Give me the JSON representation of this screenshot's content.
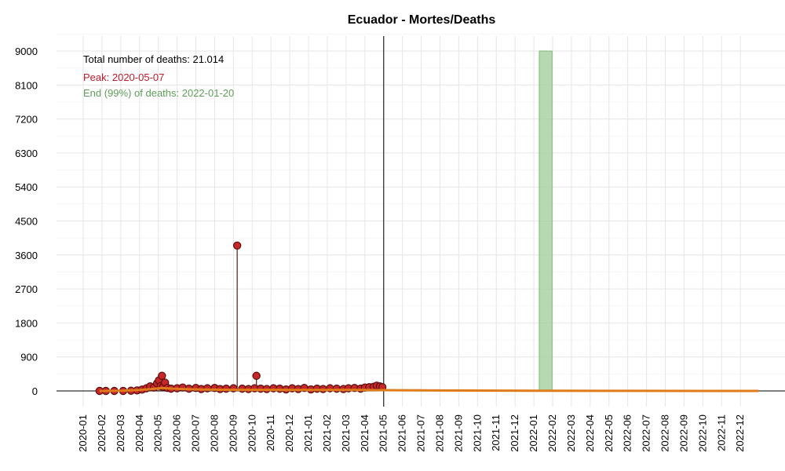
{
  "chart_data": {
    "type": "scatter",
    "title": "Ecuador - Mortes/Deaths",
    "xlabel": "",
    "ylabel": "",
    "ylim": [
      -600,
      9400
    ],
    "y_ticks": [
      0,
      900,
      1800,
      2700,
      3600,
      4500,
      5400,
      6300,
      7200,
      8100,
      9000
    ],
    "x_tick_labels": [
      "2020-01",
      "2020-02",
      "2020-03",
      "2020-04",
      "2020-05",
      "2020-06",
      "2020-07",
      "2020-08",
      "2020-09",
      "2020-10",
      "2020-11",
      "2020-12",
      "2021-01",
      "2021-02",
      "2021-03",
      "2021-04",
      "2021-05",
      "2021-06",
      "2021-07",
      "2021-08",
      "2021-09",
      "2021-10",
      "2021-11",
      "2021-12",
      "2022-01",
      "2022-02",
      "2022-03",
      "2022-04",
      "2022-05",
      "2022-06",
      "2022-07",
      "2022-08",
      "2022-09",
      "2022-10",
      "2022-11",
      "2022-12"
    ],
    "grid": true,
    "annotations": {
      "total": "Total number of deaths: 21.014",
      "peak": "Peak: 2020-05-07",
      "end": "End (99%) of deaths: 2022-01-20"
    },
    "colors": {
      "points": "#c62828",
      "point_outline": "#5a0f0f",
      "stems": "#5a1a1a",
      "fit_line": "#e07b1a",
      "band": "#a5cf9e",
      "band_edge": "#7fb878",
      "peak_text": "#c0182a",
      "end_text": "#5f9e5a",
      "vline": "#333333"
    },
    "today_line": "2021-05-01",
    "end_band": {
      "start": "2022-01-10",
      "end": "2022-01-31"
    },
    "series": [
      {
        "type": "daily_points",
        "x": [
          "2020-01-28",
          "2020-02-07",
          "2020-02-20",
          "2020-03-05",
          "2020-03-18",
          "2020-03-28",
          "2020-04-05",
          "2020-04-12",
          "2020-04-18",
          "2020-04-24",
          "2020-04-29",
          "2020-05-02",
          "2020-05-05",
          "2020-05-07",
          "2020-05-09",
          "2020-05-12",
          "2020-05-16",
          "2020-05-22",
          "2020-06-01",
          "2020-06-10",
          "2020-06-20",
          "2020-07-01",
          "2020-07-10",
          "2020-07-20",
          "2020-08-01",
          "2020-08-10",
          "2020-08-20",
          "2020-09-01",
          "2020-09-07",
          "2020-09-15",
          "2020-09-25",
          "2020-10-05",
          "2020-10-08",
          "2020-10-15",
          "2020-10-25",
          "2020-11-05",
          "2020-11-15",
          "2020-11-25",
          "2020-12-05",
          "2020-12-15",
          "2020-12-25",
          "2021-01-05",
          "2021-01-15",
          "2021-01-25",
          "2021-02-05",
          "2021-02-15",
          "2021-02-25",
          "2021-03-05",
          "2021-03-15",
          "2021-03-25",
          "2021-04-01",
          "2021-04-08",
          "2021-04-15",
          "2021-04-20",
          "2021-04-25",
          "2021-04-29"
        ],
        "y": [
          0,
          0,
          0,
          0,
          5,
          15,
          35,
          70,
          120,
          90,
          200,
          280,
          130,
          400,
          110,
          220,
          80,
          60,
          70,
          90,
          60,
          80,
          50,
          70,
          80,
          50,
          60,
          70,
          3850,
          60,
          50,
          70,
          400,
          60,
          50,
          70,
          60,
          40,
          70,
          50,
          80,
          40,
          60,
          50,
          70,
          60,
          50,
          70,
          80,
          60,
          90,
          100,
          110,
          140,
          120,
          100
        ]
      },
      {
        "type": "fitted_curve",
        "x": [
          "2020-01-28",
          "2020-03-01",
          "2020-04-01",
          "2020-04-20",
          "2020-05-07",
          "2020-05-25",
          "2020-06-15",
          "2020-07-15",
          "2020-09-01",
          "2021-01-01",
          "2021-04-01",
          "2021-05-01",
          "2021-08-01",
          "2022-01-01",
          "2022-06-01",
          "2022-12-31"
        ],
        "y": [
          0,
          5,
          25,
          50,
          80,
          60,
          45,
          35,
          30,
          25,
          25,
          20,
          12,
          6,
          3,
          0
        ]
      }
    ]
  }
}
